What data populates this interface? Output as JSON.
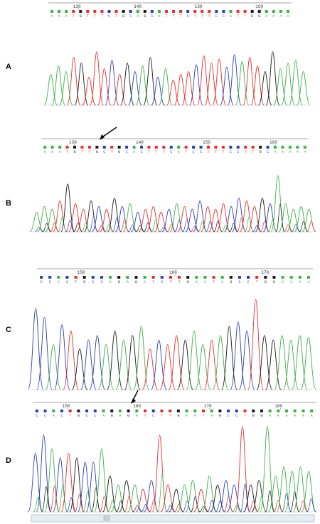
{
  "figure": {
    "colors": {
      "A": "#3fae49",
      "C": "#2b3fae",
      "G": "#1a1a1a",
      "T": "#e0302f"
    },
    "panels": [
      {
        "id": "A",
        "label": "A",
        "ruler_labels": [
          "130",
          "140",
          "150",
          "160"
        ],
        "bases": "AAATGTTTCTGCAGCATTTCTTTCCATTGGAAAA",
        "heights": [
          0.55,
          0.7,
          0.6,
          0.85,
          0.75,
          0.5,
          0.95,
          0.65,
          0.8,
          0.55,
          0.75,
          0.6,
          0.7,
          0.85,
          0.5,
          0.65,
          0.45,
          0.55,
          0.6,
          0.72,
          0.88,
          0.75,
          0.82,
          0.68,
          0.9,
          0.78,
          0.85,
          0.7,
          0.6,
          0.95,
          0.65,
          0.75,
          0.8,
          0.6
        ],
        "arrow": false
      },
      {
        "id": "B",
        "label": "B",
        "ruler_labels": [
          "130",
          "140",
          "150",
          "160"
        ],
        "bases": "AAATGTTGCTGCACTTTCATCCTTTCCTTGCAAAAA",
        "heights": [
          0.35,
          0.45,
          0.4,
          0.55,
          0.85,
          0.5,
          0.4,
          0.55,
          0.45,
          0.4,
          0.6,
          0.45,
          0.5,
          0.35,
          0.4,
          0.45,
          0.35,
          0.4,
          0.5,
          0.45,
          0.4,
          0.55,
          0.45,
          0.4,
          0.5,
          0.45,
          0.6,
          0.55,
          0.45,
          0.6,
          0.5,
          1.0,
          0.5,
          0.4,
          0.45,
          0.4
        ],
        "arrow": true
      },
      {
        "id": "C",
        "label": "C",
        "ruler_labels": [
          "150",
          "160",
          "170"
        ],
        "bases": "CCACTGCCAGAGATCTTGAATAGCCTGGAAAA",
        "heights": [
          0.9,
          0.8,
          0.5,
          0.72,
          0.65,
          0.45,
          0.55,
          0.6,
          0.5,
          0.65,
          0.55,
          0.6,
          0.7,
          0.45,
          0.55,
          0.5,
          0.6,
          0.55,
          0.65,
          0.5,
          0.55,
          0.6,
          0.7,
          0.75,
          0.65,
          1.0,
          0.6,
          0.55,
          0.6,
          0.55,
          0.6,
          0.58
        ],
        "arrow": false
      },
      {
        "id": "D",
        "label": "D",
        "ruler_labels": [
          "150",
          "160",
          "170",
          "180"
        ],
        "bases": "CCACTGCCAGAGATCTTGAATAGCCTGGAAAAAA",
        "heights": [
          0.65,
          0.85,
          0.7,
          0.6,
          0.65,
          0.6,
          0.55,
          0.55,
          0.7,
          0.4,
          0.3,
          0.35,
          0.3,
          0.25,
          0.35,
          0.85,
          0.3,
          0.25,
          0.3,
          0.35,
          0.25,
          0.4,
          0.3,
          0.35,
          0.3,
          0.95,
          0.3,
          0.35,
          0.95,
          0.4,
          0.5,
          0.45,
          0.5,
          0.45
        ],
        "arrow": true
      }
    ]
  }
}
